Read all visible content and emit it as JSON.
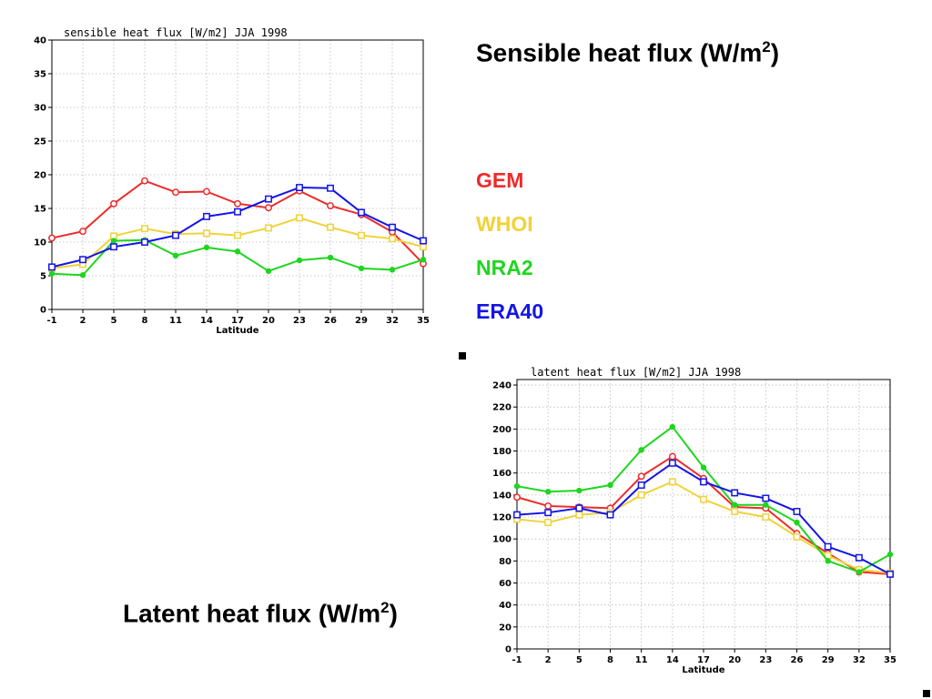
{
  "headings": {
    "sensible": {
      "text": "Sensible heat flux (W/m",
      "sup": "2",
      "close": ")"
    },
    "latent": {
      "text": "Latent heat flux (W/m",
      "sup": "2",
      "close": ")"
    }
  },
  "legend": [
    {
      "name": "GEM",
      "color": "#ee2b2b"
    },
    {
      "name": "WHOI",
      "color": "#f0d238"
    },
    {
      "name": "NRA2",
      "color": "#1ed61e"
    },
    {
      "name": "ERA40",
      "color": "#1414e8"
    }
  ],
  "chart_data": [
    {
      "type": "line",
      "title": "sensible heat flux [W/m2] JJA 1998",
      "xlabel": "Latitude",
      "ylabel": "",
      "x": [
        -1,
        2,
        5,
        8,
        11,
        14,
        17,
        20,
        23,
        26,
        29,
        32,
        35
      ],
      "xlim": [
        -1,
        35
      ],
      "ylim": [
        0,
        40
      ],
      "yticks": [
        0,
        5,
        10,
        15,
        20,
        25,
        30,
        35,
        40
      ],
      "grid": true,
      "series": [
        {
          "name": "GEM",
          "color": "#ee2b2b",
          "marker": "circle",
          "values": [
            10.6,
            11.6,
            15.7,
            19.1,
            17.4,
            17.5,
            15.7,
            15.1,
            17.6,
            15.4,
            14.1,
            11.5,
            6.8
          ]
        },
        {
          "name": "WHOI",
          "color": "#f0d238",
          "marker": "square",
          "values": [
            6.1,
            6.7,
            10.9,
            12.0,
            11.2,
            11.3,
            11.0,
            12.1,
            13.6,
            12.2,
            11.0,
            10.5,
            9.3
          ]
        },
        {
          "name": "NRA2",
          "color": "#1ed61e",
          "marker": "dot",
          "values": [
            5.3,
            5.1,
            10.2,
            10.3,
            8.0,
            9.2,
            8.6,
            5.7,
            7.3,
            7.7,
            6.1,
            5.9,
            7.4
          ]
        },
        {
          "name": "ERA40",
          "color": "#1414e8",
          "marker": "square",
          "values": [
            6.3,
            7.4,
            9.3,
            10.0,
            11.0,
            13.8,
            14.5,
            16.4,
            18.1,
            18.0,
            14.4,
            12.2,
            10.2
          ]
        }
      ]
    },
    {
      "type": "line",
      "title": "latent heat flux [W/m2] JJA 1998",
      "xlabel": "Latitude",
      "ylabel": "",
      "x": [
        -1,
        2,
        5,
        8,
        11,
        14,
        17,
        20,
        23,
        26,
        29,
        32,
        35
      ],
      "xlim": [
        -1,
        35
      ],
      "ylim": [
        0,
        245
      ],
      "yticks": [
        0,
        20,
        40,
        60,
        80,
        100,
        120,
        140,
        160,
        180,
        200,
        220,
        240
      ],
      "grid": true,
      "series": [
        {
          "name": "GEM",
          "color": "#ee2b2b",
          "marker": "circle",
          "values": [
            138,
            130,
            129,
            128,
            157,
            175,
            155,
            129,
            128,
            105,
            87,
            70,
            68
          ]
        },
        {
          "name": "WHOI",
          "color": "#f0d238",
          "marker": "square",
          "values": [
            118,
            115,
            122,
            124,
            140,
            152,
            136,
            125,
            120,
            102,
            85,
            72,
            69
          ]
        },
        {
          "name": "NRA2",
          "color": "#1ed61e",
          "marker": "dot",
          "values": [
            148,
            143,
            144,
            149,
            181,
            202,
            165,
            131,
            131,
            115,
            80,
            70,
            86
          ]
        },
        {
          "name": "ERA40",
          "color": "#1414e8",
          "marker": "square",
          "values": [
            122,
            124,
            128,
            122,
            149,
            169,
            152,
            142,
            137,
            125,
            93,
            83,
            68
          ]
        }
      ]
    }
  ]
}
